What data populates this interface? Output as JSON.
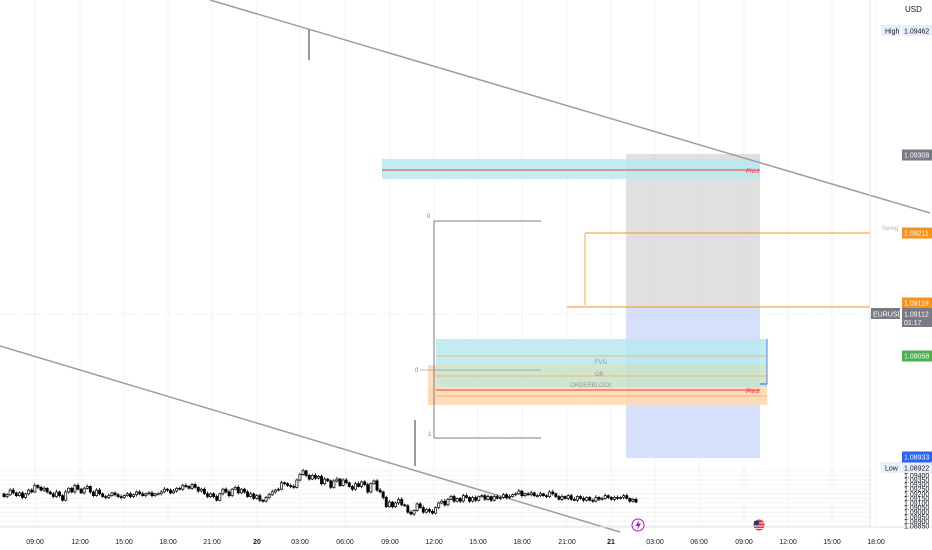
{
  "currency_label": "USD",
  "symbol_tag": "EURUSD",
  "price_tag": "1.09112",
  "countdown": "01:17",
  "high_label": "High",
  "high_value": "1.09462",
  "low_label": "Low",
  "low_value": "1.08922",
  "colors": {
    "up_candle": "#000000",
    "down_candle": "#000000",
    "channel_line": "#9e9e9e",
    "pivot_line": "#f23645",
    "orange_line": "#f7931a",
    "fvg_fill": "#b9e9ef",
    "demand_fill": "#ffd8b0",
    "green_fill": "#c8e2c8",
    "blue_fill": "#d3ddfb",
    "gray_fill": "#d5d5d5",
    "tag_green": "#4caf50",
    "tag_blue": "#2962ff",
    "tag_orange": "#f7931a",
    "tag_gray": "#787b86"
  },
  "chart_data": {
    "type": "candlestick",
    "symbol": "EURUSD",
    "currency": "USD",
    "x_ticks": [
      "09:00",
      "12:00",
      "15:00",
      "18:00",
      "21:00",
      "20",
      "03:00",
      "06:00",
      "09:00",
      "12:00",
      "15:00",
      "18:00",
      "21:00",
      "21",
      "03:00",
      "06:00",
      "09:00",
      "12:00",
      "15:00",
      "18:00"
    ],
    "y_ticks": [
      "1.09450",
      "1.09400",
      "1.09350",
      "1.09300",
      "1.09250",
      "1.09200",
      "1.09150",
      "1.09100",
      "1.09050",
      "1.09000",
      "1.08950",
      "1.08900",
      "1.08850"
    ],
    "ylim": [
      1.0884,
      1.0949
    ],
    "tagged_prices": [
      {
        "value": "1.09308",
        "color": "gray"
      },
      {
        "value": "1.09211",
        "color": "orange"
      },
      {
        "value": "1.09118",
        "color": "orange"
      },
      {
        "value": "1.09112",
        "color": "gray"
      },
      {
        "value": "1.09058",
        "color": "green"
      },
      {
        "value": "1.08933",
        "color": "blue"
      }
    ],
    "annotations": [
      {
        "text": "Pivot",
        "price": 1.0929
      },
      {
        "text": "Pivot",
        "price": 1.0901
      },
      {
        "text": "FVG",
        "price": 1.0905
      },
      {
        "text": "OB",
        "price": 1.0904
      },
      {
        "text": "ORDERBLOCK",
        "price": 1.0902
      },
      {
        "text": "0",
        "price": 1.0923
      },
      {
        "text": "0",
        "price": 1.0904
      },
      {
        "text": "1",
        "price": 1.0896
      },
      {
        "text": "Swing",
        "price": 1.0921
      }
    ],
    "events": [
      "lightning",
      "us-flag"
    ]
  }
}
